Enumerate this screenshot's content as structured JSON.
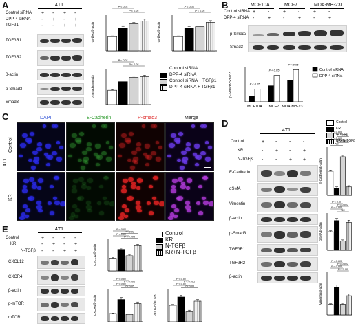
{
  "panels": [
    "A",
    "B",
    "C",
    "D",
    "E"
  ],
  "A": {
    "cell_line": "4T1",
    "treat_rows": [
      "Control siRNA",
      "DPP-4 siRNA",
      "TGFβ1"
    ],
    "treat_signs": [
      [
        "+",
        "-",
        "+",
        "-"
      ],
      [
        "-",
        "+",
        "-",
        "+"
      ],
      [
        "-",
        "-",
        "+",
        "+"
      ]
    ],
    "blot_rows": [
      "TGFβR1",
      "TGFβR2",
      "β-actin",
      "p-Smad3",
      "Smad3"
    ],
    "legend": [
      "Control siRNA",
      "DPP-4 siRNA",
      "Control siRNA + TGFβ1",
      "DPP-4 siRNA + TGFβ1"
    ]
  },
  "B": {
    "cell_lines": [
      "MCF10A",
      "MCF7",
      "MDA-MB-231"
    ],
    "treat_rows": [
      "Control siRNA",
      "DPP-4 siRNA"
    ],
    "signs": [
      [
        "+",
        "-",
        "+",
        "-",
        "+",
        "-"
      ],
      [
        "-",
        "+",
        "-",
        "+",
        "-",
        "+"
      ]
    ],
    "blot_rows": [
      "p-Smad3",
      "Smad3"
    ],
    "legend": [
      "Control siRNA",
      "DPP-4 siRNA"
    ]
  },
  "C": {
    "col_headers": [
      "DAPI",
      "E-Cadherin",
      "P-smad3",
      "Merge"
    ],
    "row_labels": [
      "Control",
      "KR"
    ],
    "cell_line": "4T1"
  },
  "D": {
    "cell_line": "4T1",
    "treat_rows": [
      "Control",
      "KR",
      "N-TGFβ"
    ],
    "treat_signs": [
      [
        "+",
        "-",
        "-",
        "-"
      ],
      [
        "-",
        "+",
        "-",
        "+"
      ],
      [
        "-",
        "-",
        "+",
        "+"
      ]
    ],
    "blot_rows": [
      "E-Cadherin",
      "αSMA",
      "Vimentin",
      "β-actin",
      "p-Smad3",
      "TGFβR1",
      "TGFβR2",
      "β-actin"
    ],
    "legend": [
      "Control",
      "KR",
      "N-TGFβ",
      "KR+N-TGFβ"
    ]
  },
  "E": {
    "cell_line": "4T1",
    "treat_rows": [
      "Control",
      "KR",
      "N-TGFβ"
    ],
    "treat_signs": [
      [
        "+",
        "-",
        "-",
        "-"
      ],
      [
        "-",
        "+",
        "-",
        "+"
      ],
      [
        "-",
        "-",
        "+",
        "+"
      ]
    ],
    "blot_rows": [
      "CXCL12",
      "CXCR4",
      "β-actin",
      "p-mTOR",
      "mTOR"
    ],
    "legend": [
      "Control",
      "KR",
      "N-TGFβ",
      "KR+N-TGFβ"
    ]
  },
  "chart_data": [
    {
      "id": "A-TGFbR1",
      "type": "bar",
      "categories": [
        "Control siRNA",
        "DPP-4 siRNA",
        "Control siRNA + TGFβ1",
        "DPP-4 siRNA + TGFβ1"
      ],
      "values": [
        1.0,
        1.6,
        1.9,
        2.1
      ],
      "errors": [
        0.05,
        0.12,
        0.1,
        0.12
      ],
      "ylabel": "TGFβR1/β-actin",
      "ylim": [
        0,
        2.5
      ],
      "sig": [
        "P < 0.01",
        "P < 0.05"
      ]
    },
    {
      "id": "A-TGFbR2",
      "type": "bar",
      "categories": [
        "Control siRNA",
        "DPP-4 siRNA",
        "Control siRNA + TGFβ1",
        "DPP-4 siRNA + TGFβ1"
      ],
      "values": [
        1.0,
        1.6,
        1.7,
        2.0
      ],
      "errors": [
        0.05,
        0.1,
        0.1,
        0.12
      ],
      "ylabel": "TGFβR2/β-actin",
      "ylim": [
        0,
        2.5
      ],
      "sig": [
        "P < 0.05",
        "P < 0.05"
      ]
    },
    {
      "id": "A-pSmad3",
      "type": "bar",
      "categories": [
        "Control siRNA",
        "DPP-4 siRNA",
        "Control siRNA + TGFβ1",
        "DPP-4 siRNA + TGFβ1"
      ],
      "values": [
        1.0,
        1.6,
        1.9,
        1.95
      ],
      "errors": [
        0.05,
        0.1,
        0.08,
        0.1
      ],
      "ylabel": "p-Smad3/Smad3",
      "ylim": [
        0,
        2.5
      ],
      "sig": [
        "P < 0.01",
        "P < 0.05"
      ]
    },
    {
      "id": "B-pSmad3",
      "type": "bar",
      "categories": [
        "MCF10A",
        "MCF7",
        "MDA-MB-231"
      ],
      "series": [
        {
          "name": "Control siRNA",
          "values": [
            0.25,
            0.7,
            0.95
          ]
        },
        {
          "name": "DPP-4 siRNA",
          "values": [
            0.55,
            1.15,
            1.4
          ]
        }
      ],
      "ylabel": "p-Smad3/Smad3",
      "ylim": [
        0,
        1.5
      ],
      "sig": [
        "P < 0.05",
        "P < 0.05",
        "P < 0.05"
      ]
    },
    {
      "id": "D-Ecad",
      "type": "bar",
      "categories": [
        "Control",
        "KR",
        "N-TGFβ",
        "KR+N-TGFβ"
      ],
      "values": [
        1.0,
        0.3,
        1.6,
        0.35
      ],
      "errors": [
        0.05,
        0.05,
        0.06,
        0.05
      ],
      "ylabel": "E-Cadherin/β-actin",
      "ylim": [
        0,
        2
      ],
      "sig": [
        "P < 0.001",
        "P < 0.001",
        "P < 0.001",
        "P < 0.001",
        "NS"
      ]
    },
    {
      "id": "D-aSMA",
      "type": "bar",
      "categories": [
        "Control",
        "KR",
        "N-TGFβ",
        "KR+N-TGFβ"
      ],
      "values": [
        1.0,
        1.6,
        0.5,
        1.5
      ],
      "errors": [
        0.05,
        0.12,
        0.06,
        0.12
      ],
      "ylabel": "αSMA/β-actin",
      "ylim": [
        0,
        2
      ],
      "sig": [
        "P < 0.05",
        "P < 0.001",
        "P < 0.001",
        "NS"
      ]
    },
    {
      "id": "D-Vim",
      "type": "bar",
      "categories": [
        "Control",
        "KR",
        "N-TGFβ",
        "KR+N-TGFβ"
      ],
      "values": [
        1.0,
        2.6,
        1.0,
        1.8
      ],
      "errors": [
        0.05,
        0.2,
        0.1,
        0.15
      ],
      "ylabel": "Vimentin/β-actin",
      "ylim": [
        0,
        4
      ],
      "sig": [
        "P < 0.001",
        "P < 0.001",
        "P < 0.001",
        "P < 0.05"
      ]
    },
    {
      "id": "E-CXCL12",
      "type": "bar",
      "categories": [
        "Control",
        "KR",
        "N-TGFβ",
        "KR+N-TGFβ"
      ],
      "values": [
        1.0,
        1.7,
        1.2,
        2.0
      ],
      "errors": [
        0.05,
        0.1,
        0.1,
        0.1
      ],
      "ylabel": "CXCL12/β-actin",
      "ylim": [
        0,
        2.5
      ],
      "sig": [
        "P < 0.01",
        "P < 0.01",
        "P < 0.01",
        "P < 0.001"
      ]
    },
    {
      "id": "E-CXCR4",
      "type": "bar",
      "categories": [
        "Control",
        "KR",
        "N-TGFβ",
        "KR+N-TGFβ"
      ],
      "values": [
        1.0,
        2.7,
        0.9,
        2.2
      ],
      "errors": [
        0.05,
        0.25,
        0.05,
        0.2
      ],
      "ylabel": "CXCR4/β-actin",
      "ylim": [
        0,
        4
      ],
      "sig": [
        "P < 0.01",
        "P < 0.001",
        "P < 0.01",
        "P < 0.05"
      ]
    },
    {
      "id": "E-pmTOR",
      "type": "bar",
      "categories": [
        "Control",
        "KR",
        "N-TGFβ",
        "KR+N-TGFβ"
      ],
      "values": [
        1.0,
        1.5,
        0.6,
        1.25
      ],
      "errors": [
        0.05,
        0.1,
        0.1,
        0.1
      ],
      "ylabel": "p-mTOR/mTOR",
      "ylim": [
        0,
        2
      ],
      "sig": [
        "P < 0.01",
        "P < 0.001",
        "P < 0.01",
        "P < 0.05"
      ]
    }
  ]
}
